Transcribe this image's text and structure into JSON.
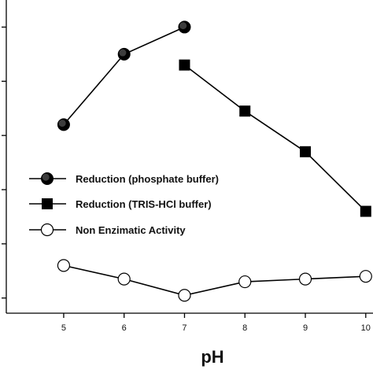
{
  "chart_data": {
    "type": "line",
    "title": "",
    "xlabel": "pH",
    "ylabel": "",
    "xlim": [
      4.05,
      10.12
    ],
    "ylim": [
      -0.28,
      5.5
    ],
    "x_ticks": [
      5,
      6,
      7,
      8,
      9,
      10
    ],
    "y_ticks": [
      0,
      1,
      2,
      3,
      4,
      5
    ],
    "grid": false,
    "legend_position": "center-left",
    "series": [
      {
        "name": "Reduction (phosphate buffer)",
        "marker": "filled-circle",
        "color": "#000000",
        "x": [
          5,
          6,
          7
        ],
        "y": [
          3.2,
          4.5,
          5.0
        ]
      },
      {
        "name": "Reduction (TRIS-HCl buffer)",
        "marker": "filled-square",
        "color": "#000000",
        "x": [
          7,
          8,
          9,
          10
        ],
        "y": [
          4.3,
          3.45,
          2.7,
          1.6
        ]
      },
      {
        "name": "Non Enzimatic Activity",
        "marker": "open-circle",
        "color": "#000000",
        "x": [
          5,
          6,
          7,
          8,
          9,
          10
        ],
        "y": [
          0.6,
          0.35,
          0.05,
          0.3,
          0.35,
          0.4
        ]
      }
    ]
  }
}
